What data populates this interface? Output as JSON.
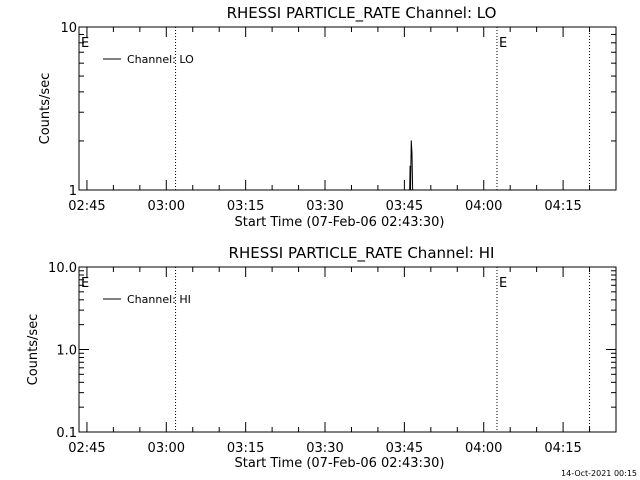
{
  "chart_data": [
    {
      "type": "line",
      "title": "RHESSI PARTICLE_RATE Channel: LO",
      "xlabel": "Start Time (07-Feb-06 02:43:30)",
      "ylabel": "Counts/sec",
      "x_scale": "time",
      "y_scale": "log",
      "xlim": [
        "02:43:30",
        "04:25:00"
      ],
      "ylim": [
        1,
        10
      ],
      "x_ticks": [
        "02:45",
        "03:00",
        "03:15",
        "03:30",
        "03:45",
        "04:00",
        "04:15"
      ],
      "y_ticks": [
        "1",
        "10"
      ],
      "legend": {
        "position": "top-left",
        "entries": [
          "Channel: LO"
        ]
      },
      "series": [
        {
          "name": "Channel: LO",
          "points": [
            [
              "03:46:00",
              1
            ],
            [
              "03:46:05",
              1.4
            ],
            [
              "03:46:10",
              1
            ],
            [
              "03:46:18",
              2.0
            ],
            [
              "03:46:26",
              1.7
            ],
            [
              "03:46:34",
              1
            ]
          ]
        }
      ],
      "markers": [
        {
          "time": "02:43:30",
          "label": "E"
        },
        {
          "time": "03:01:45",
          "label": ""
        },
        {
          "time": "04:02:30",
          "label": "E"
        },
        {
          "time": "04:20:00",
          "label": ""
        }
      ]
    },
    {
      "type": "line",
      "title": "RHESSI PARTICLE_RATE Channel: HI",
      "xlabel": "Start Time (07-Feb-06 02:43:30)",
      "ylabel": "Counts/sec",
      "x_scale": "time",
      "y_scale": "log",
      "xlim": [
        "02:43:30",
        "04:25:00"
      ],
      "ylim": [
        0.1,
        10
      ],
      "x_ticks": [
        "02:45",
        "03:00",
        "03:15",
        "03:30",
        "03:45",
        "04:00",
        "04:15"
      ],
      "y_ticks": [
        "0.1",
        "1.0",
        "10.0"
      ],
      "legend": {
        "position": "top-left",
        "entries": [
          "Channel: HI"
        ]
      },
      "series": [
        {
          "name": "Channel: HI",
          "points": []
        }
      ],
      "markers": [
        {
          "time": "02:43:30",
          "label": "E"
        },
        {
          "time": "03:01:45",
          "label": ""
        },
        {
          "time": "04:02:30",
          "label": "E"
        },
        {
          "time": "04:20:00",
          "label": ""
        }
      ]
    }
  ],
  "footer": {
    "timestamp": "14-Oct-2021 00:15"
  }
}
